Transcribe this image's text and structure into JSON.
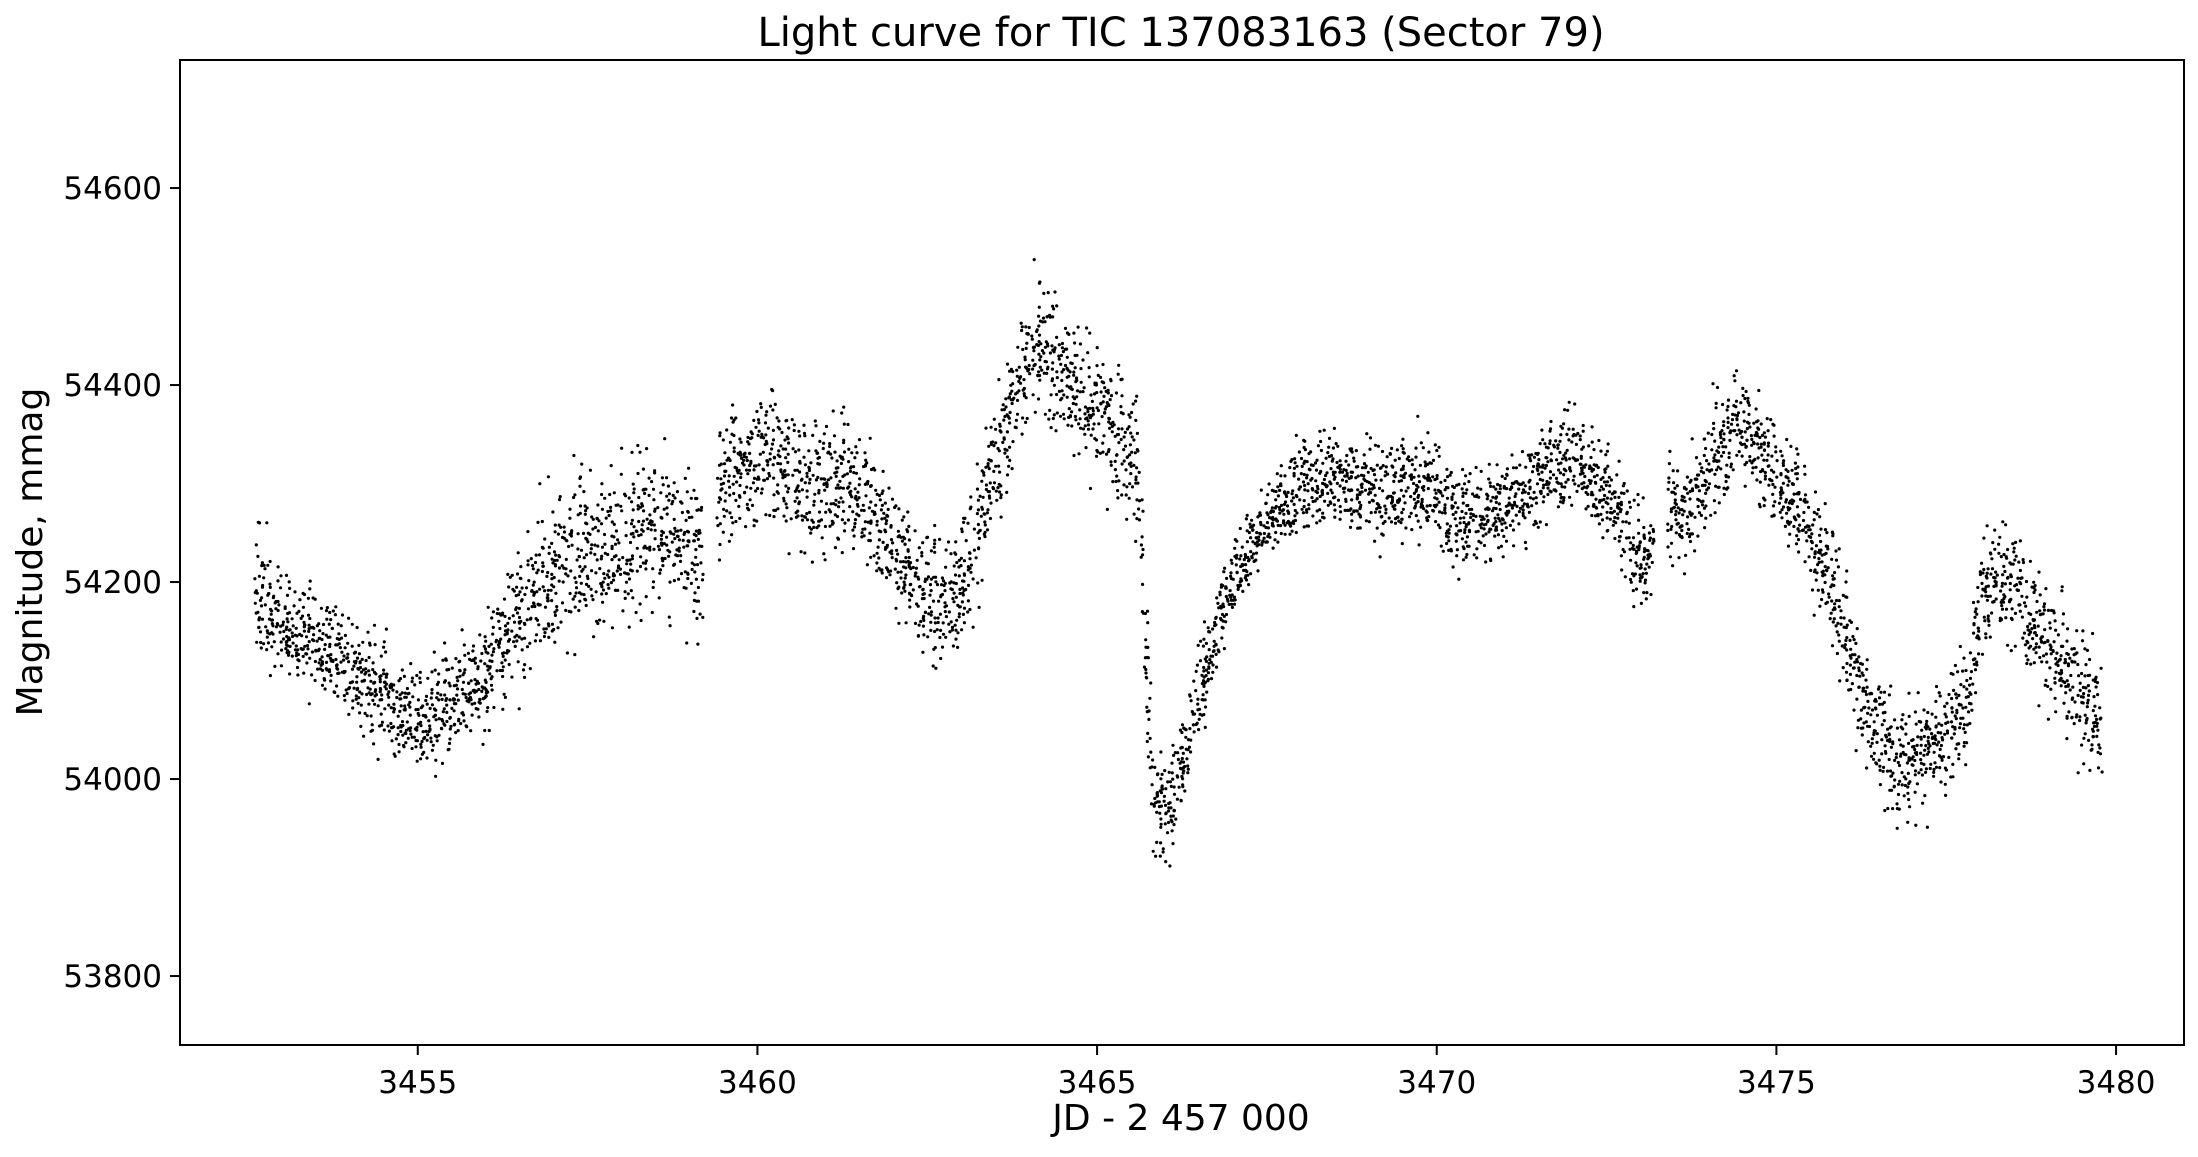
{
  "chart_data": {
    "type": "scatter",
    "title": "Light curve for TIC 137083163 (Sector 79)",
    "xlabel": "JD - 2 457 000",
    "ylabel": "Magnitude, mmag",
    "xlim": [
      3451.5,
      3481.0
    ],
    "ylim": [
      53730,
      54730
    ],
    "x_ticks": [
      3455,
      3460,
      3465,
      3470,
      3475,
      3480
    ],
    "y_ticks": [
      53800,
      54000,
      54200,
      54400,
      54600
    ],
    "x_tick_labels": [
      "3455",
      "3460",
      "3465",
      "3470",
      "3475",
      "3480"
    ],
    "y_tick_labels": [
      "53800",
      "54000",
      "54200",
      "54400",
      "54600"
    ],
    "grid": false,
    "marker_color": "#000000",
    "series": [
      {
        "x": [
          3452.6,
          3452.8,
          3453.0,
          3453.2,
          3453.4,
          3453.6,
          3453.8,
          3454.0,
          3454.2,
          3454.4,
          3454.6,
          3454.8,
          3455.0,
          3455.2,
          3455.4,
          3455.6,
          3455.8,
          3456.0,
          3456.2,
          3456.4,
          3456.6,
          3456.8,
          3457.0,
          3457.2,
          3457.4,
          3457.6,
          3457.8,
          3458.0,
          3458.2,
          3458.4,
          3458.6,
          3458.8,
          3459.0,
          3459.4,
          3459.6,
          3459.8,
          3460.0,
          3460.2,
          3460.4,
          3460.6,
          3460.8,
          3461.0,
          3461.2,
          3461.4,
          3461.6,
          3461.8,
          3462.0,
          3462.2,
          3462.4,
          3462.6,
          3462.8,
          3463.0,
          3463.2,
          3463.4,
          3463.6,
          3463.8,
          3464.0,
          3464.2,
          3464.4,
          3464.6,
          3464.8,
          3465.0,
          3465.2,
          3465.4,
          3465.6,
          3465.8,
          3466.0,
          3466.2,
          3466.4,
          3466.6,
          3466.8,
          3467.0,
          3467.2,
          3467.4,
          3467.6,
          3467.8,
          3468.0,
          3468.2,
          3468.4,
          3468.6,
          3468.8,
          3469.0,
          3469.2,
          3469.4,
          3469.6,
          3469.8,
          3470.0,
          3470.2,
          3470.4,
          3470.6,
          3470.8,
          3471.0,
          3471.2,
          3471.4,
          3471.6,
          3471.8,
          3472.0,
          3472.2,
          3472.4,
          3472.6,
          3472.8,
          3473.0,
          3473.4,
          3473.6,
          3473.8,
          3474.0,
          3474.2,
          3474.4,
          3474.6,
          3474.8,
          3475.0,
          3475.2,
          3475.4,
          3475.6,
          3475.8,
          3476.0,
          3476.2,
          3476.4,
          3476.6,
          3476.8,
          3477.0,
          3477.2,
          3477.4,
          3477.6,
          3477.8,
          3478.0,
          3478.2,
          3478.4,
          3478.6,
          3478.8,
          3479.0,
          3479.2,
          3479.4,
          3479.6
        ],
        "y": [
          54190,
          54175,
          54160,
          54145,
          54140,
          54130,
          54120,
          54110,
          54100,
          54090,
          54080,
          54070,
          54065,
          54060,
          54070,
          54080,
          54090,
          54100,
          54140,
          54160,
          54180,
          54190,
          54200,
          54215,
          54230,
          54220,
          54230,
          54240,
          54250,
          54255,
          54250,
          54240,
          54230,
          54300,
          54310,
          54320,
          54320,
          54330,
          54320,
          54300,
          54290,
          54300,
          54300,
          54290,
          54280,
          54260,
          54240,
          54220,
          54200,
          54180,
          54170,
          54200,
          54240,
          54300,
          54340,
          54390,
          54430,
          54440,
          54420,
          54400,
          54390,
          54370,
          54360,
          54340,
          54320,
          54000,
          53950,
          54000,
          54060,
          54110,
          54160,
          54200,
          54230,
          54250,
          54270,
          54280,
          54300,
          54305,
          54300,
          54300,
          54290,
          54290,
          54280,
          54290,
          54300,
          54300,
          54290,
          54270,
          54260,
          54270,
          54260,
          54280,
          54290,
          54300,
          54310,
          54320,
          54330,
          54320,
          54300,
          54280,
          54250,
          54230,
          54280,
          54260,
          54280,
          54320,
          54340,
          54370,
          54350,
          54320,
          54300,
          54290,
          54270,
          54230,
          54200,
          54150,
          54100,
          54060,
          54030,
          54010,
          54020,
          54030,
          54040,
          54060,
          54080,
          54180,
          54200,
          54200,
          54180,
          54160,
          54140,
          54120,
          54100,
          54070
        ],
        "spread": [
          55,
          50,
          45,
          45,
          45,
          45,
          45,
          45,
          45,
          45,
          45,
          45,
          45,
          45,
          45,
          45,
          45,
          50,
          60,
          65,
          70,
          70,
          70,
          70,
          70,
          70,
          70,
          75,
          75,
          75,
          75,
          75,
          75,
          60,
          60,
          60,
          60,
          60,
          60,
          60,
          60,
          60,
          60,
          60,
          60,
          55,
          55,
          55,
          55,
          55,
          55,
          55,
          55,
          55,
          55,
          55,
          55,
          60,
          60,
          60,
          60,
          60,
          60,
          60,
          60,
          50,
          50,
          45,
          45,
          40,
          40,
          35,
          35,
          35,
          35,
          40,
          40,
          40,
          40,
          40,
          40,
          45,
          45,
          45,
          45,
          45,
          45,
          45,
          45,
          45,
          45,
          45,
          45,
          45,
          45,
          45,
          45,
          45,
          45,
          45,
          45,
          45,
          45,
          50,
          50,
          50,
          50,
          50,
          50,
          50,
          50,
          50,
          50,
          50,
          50,
          50,
          50,
          55,
          55,
          55,
          55,
          55,
          55,
          55,
          55,
          55,
          55,
          55,
          55,
          55,
          55,
          55,
          55,
          60
        ]
      }
    ]
  }
}
